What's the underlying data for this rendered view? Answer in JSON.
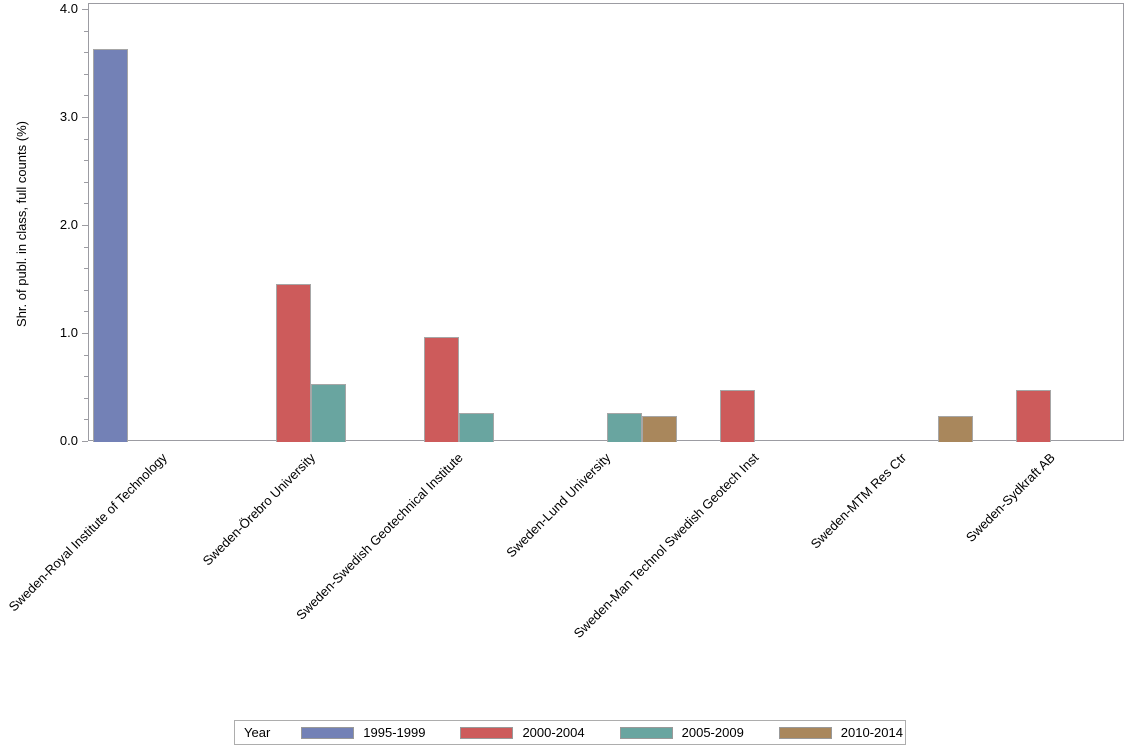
{
  "chart_data": {
    "type": "bar",
    "title": "",
    "xlabel": "",
    "ylabel": "Shr. of publ. in class, full counts (%)",
    "ylim": [
      0.0,
      4.0
    ],
    "y_major_step": 1.0,
    "y_minor_step": 0.2,
    "y_tick_labels": [
      "0.0",
      "1.0",
      "2.0",
      "3.0",
      "4.0"
    ],
    "grid": false,
    "legend_title": "Year",
    "legend_position": "bottom",
    "categories": [
      "Sweden-Royal Institute of Technology",
      "Sweden-Örebro University",
      "Sweden-Swedish Geotechnical Institute",
      "Sweden-Lund University",
      "Sweden-Man Technol Swedish Geotech Inst",
      "Sweden-MTM Res Ctr",
      "Sweden-Sydkraft AB"
    ],
    "series": [
      {
        "name": "1995-1999",
        "color": "#7381b6",
        "values": [
          3.64,
          0,
          0,
          0,
          0,
          0,
          0
        ]
      },
      {
        "name": "2000-2004",
        "color": "#cd5b5b",
        "values": [
          0,
          1.46,
          0.97,
          0,
          0.48,
          0,
          0.48
        ]
      },
      {
        "name": "2005-2009",
        "color": "#69a5a0",
        "values": [
          0,
          0.54,
          0.27,
          0.27,
          0,
          0,
          0
        ]
      },
      {
        "name": "2010-2014",
        "color": "#a9875c",
        "values": [
          0,
          0,
          0,
          0.24,
          0,
          0.24,
          0
        ]
      }
    ],
    "bar_outline_color": "#a6a6a6",
    "axis_color": "#9c9ca2"
  }
}
